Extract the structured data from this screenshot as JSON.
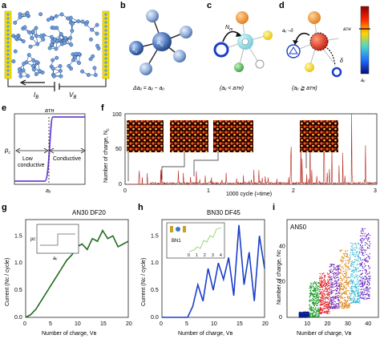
{
  "panel_labels": [
    "a",
    "b",
    "c",
    "d",
    "e",
    "f",
    "g",
    "h",
    "i"
  ],
  "panel_a": {
    "current_label": "Iʙ",
    "voltage_label": "Vʙ",
    "current_text": "I",
    "current_sub": "B",
    "voltage_text": "V",
    "voltage_sub": "B"
  },
  "panel_b": {
    "center": "a",
    "center_sub": "i,j",
    "neighbor_label": "a",
    "neighbor_sub": "i,j",
    "formula": "Δaᵢⱼ = aᵢⱼ − aᵢⱼ"
  },
  "panel_d": {
    "caption": "(aᵢⱼ < aᴛʜ)",
    "arrow_label": "N",
    "arrow_sub": "m"
  },
  "panel_e": {
    "caption": "(aᵢⱼ ≧ aᴛʜ)",
    "left_label": "aᵢⱼ −δ",
    "right_label": "δ",
    "colorbar_top": "aᴛʜ",
    "colorbar_bottom": "aᵢⱼ"
  },
  "panel_c": {
    "ylabel": "p",
    "ylabel_sub": "c",
    "threshold_label": "aᴛʜ",
    "low_label": "Low",
    "low_label2": "conductive",
    "high_label": "Conductive",
    "xlabel": "aᵢⱼ"
  },
  "panel_f": {
    "ylabel": "Number of charge, N",
    "ylabel_sub": "c",
    "xlabel": "1000 cycle (≈time)",
    "yticks": [
      "0",
      "50",
      "100"
    ],
    "xticks": [
      "0",
      "1",
      "2",
      "3"
    ]
  },
  "panel_g": {
    "title": "AN30 DF20",
    "ylabel": "Current (Nᴄ / cycle)",
    "xlabel": "Number of charge, Vʙ",
    "yticks": [
      "0.0",
      "0.5",
      "1.0",
      "1.5"
    ],
    "xticks": [
      "0",
      "5",
      "10",
      "15",
      "20"
    ],
    "inset_ylabel": "pᴄ",
    "inset_xlabel": "aᵢⱼ"
  },
  "panel_h": {
    "title": "BN30 DF45",
    "ylabel": "Current (Nᴄ / cycle)",
    "xlabel": "Number of charge, Vʙ",
    "yticks": [
      "0.0",
      "0.5",
      "1.0",
      "1.5"
    ],
    "xticks": [
      "0",
      "5",
      "10",
      "15",
      "20"
    ],
    "inset_label": "BN1",
    "inset_xticks": [
      "0",
      "1",
      "2",
      "3",
      "4"
    ]
  },
  "panel_i": {
    "title": "AN50",
    "ylabel": "Number of charge, Nᴄ",
    "xlabel": "Number of charge, Vʙ",
    "yticks": [
      "0",
      "20",
      "40"
    ],
    "xticks": [
      "10",
      "20",
      "30",
      "40"
    ]
  },
  "colors": {
    "network_blue": "#3b78c8",
    "electrode_yellow": "#f5e000",
    "sigmoid_purple": "#6b3fd4",
    "spike_red": "#b8261c",
    "line_green": "#1f6b1f",
    "line_blue": "#1a3fc9"
  },
  "chart_data": [
    {
      "type": "line",
      "title": "AN30 DF20",
      "xlabel": "Number of charge, V_B",
      "ylabel": "Current (N_c / cycle)",
      "x": [
        0,
        1,
        2,
        3,
        4,
        5,
        6,
        7,
        8,
        9,
        10,
        11,
        12,
        13,
        14,
        15,
        16,
        17,
        18,
        19,
        20
      ],
      "series": [
        {
          "values": [
            0.0,
            0.05,
            0.15,
            0.3,
            0.45,
            0.6,
            0.75,
            0.9,
            1.05,
            1.15,
            1.3,
            1.35,
            1.25,
            1.45,
            1.4,
            1.6,
            1.45,
            1.5,
            1.3,
            1.35,
            1.4
          ]
        }
      ],
      "xlim": [
        0,
        20
      ],
      "ylim": [
        0,
        1.8
      ]
    },
    {
      "type": "line",
      "title": "BN30 DF45",
      "xlabel": "Number of charge, V_B",
      "ylabel": "Current (N_c / cycle)",
      "x": [
        0,
        5,
        6,
        7,
        8,
        9,
        10,
        11,
        12,
        13,
        14,
        15,
        16,
        17,
        18,
        19,
        20
      ],
      "series": [
        {
          "values": [
            0.0,
            0.0,
            0.2,
            0.6,
            0.3,
            0.9,
            0.5,
            1.0,
            0.7,
            1.1,
            0.4,
            1.7,
            0.6,
            1.2,
            0.3,
            1.5,
            0.9
          ]
        }
      ],
      "xlim": [
        0,
        20
      ],
      "ylim": [
        0,
        1.8
      ]
    },
    {
      "type": "scatter",
      "title": "AN50",
      "xlabel": "Number of charge, V_B",
      "ylabel": "Number of charge, N_c",
      "groups": [
        {
          "x_range": [
            6,
            11
          ],
          "y_range": [
            0,
            3
          ],
          "color": "#0a1e8c"
        },
        {
          "x_range": [
            11,
            16
          ],
          "y_range": [
            0,
            20
          ],
          "color": "#1f9c2a"
        },
        {
          "x_range": [
            16,
            21
          ],
          "y_range": [
            2,
            25
          ],
          "color": "#e01d24"
        },
        {
          "x_range": [
            21,
            26
          ],
          "y_range": [
            5,
            30
          ],
          "color": "#7b35b5"
        },
        {
          "x_range": [
            26,
            31
          ],
          "y_range": [
            5,
            38
          ],
          "color": "#e08a1c"
        },
        {
          "x_range": [
            31,
            36
          ],
          "y_range": [
            8,
            42
          ],
          "color": "#37b8d8"
        },
        {
          "x_range": [
            36,
            41
          ],
          "y_range": [
            10,
            50
          ],
          "color": "#6a2ec0"
        }
      ],
      "xlim": [
        0,
        45
      ],
      "ylim": [
        0,
        55
      ]
    }
  ]
}
